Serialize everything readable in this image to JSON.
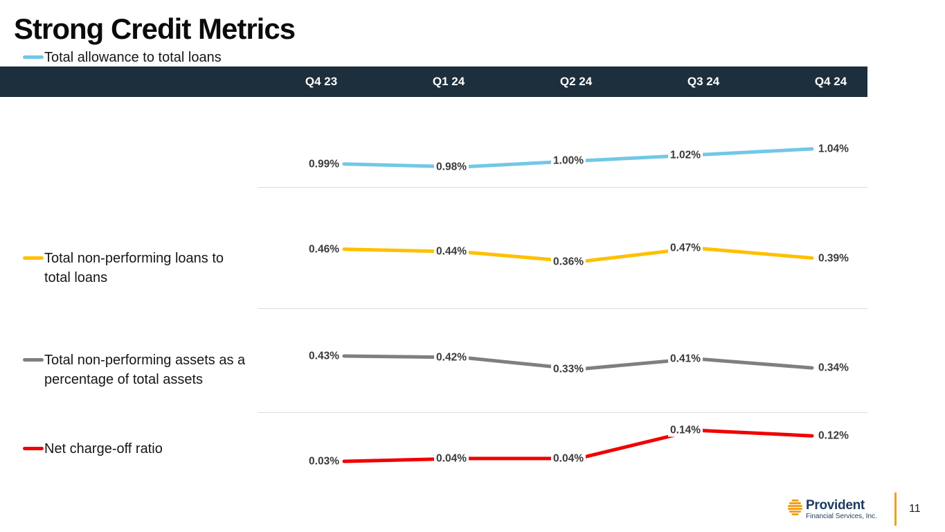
{
  "slide": {
    "title": "Strong Credit Metrics",
    "page_number": "11",
    "background_color": "#ffffff"
  },
  "header": {
    "columns": [
      "Q4 23",
      "Q1 24",
      "Q2 24",
      "Q3 24",
      "Q4 24"
    ],
    "bg_color": "#1d2e3c",
    "text_color": "#ffffff"
  },
  "chart_data": {
    "type": "line",
    "categories": [
      "Q4 23",
      "Q1 24",
      "Q2 24",
      "Q3 24",
      "Q4 24"
    ],
    "value_format": "percent",
    "grid": "row-dividers-only",
    "legend_position": "left",
    "series": [
      {
        "name": "Total allowance to total loans",
        "color": "#72c7e7",
        "values": [
          0.99,
          0.98,
          1.0,
          1.02,
          1.04
        ],
        "labels": [
          "0.99%",
          "0.98%",
          "1.00%",
          "1.02%",
          "1.04%"
        ],
        "ylim": [
          0.98,
          1.04
        ]
      },
      {
        "name": "Total non-performing loans to total loans",
        "color": "#ffc000",
        "values": [
          0.46,
          0.44,
          0.36,
          0.47,
          0.39
        ],
        "labels": [
          "0.46%",
          "0.44%",
          "0.36%",
          "0.47%",
          "0.39%"
        ],
        "ylim": [
          0.36,
          0.47
        ]
      },
      {
        "name": "Total non-performing assets as a percentage of total assets",
        "color": "#7f7f7f",
        "values": [
          0.43,
          0.42,
          0.33,
          0.41,
          0.34
        ],
        "labels": [
          "0.43%",
          "0.42%",
          "0.33%",
          "0.41%",
          "0.34%"
        ],
        "ylim": [
          0.33,
          0.43
        ]
      },
      {
        "name": "Net charge-off ratio",
        "color": "#f00000",
        "values": [
          0.03,
          0.04,
          0.04,
          0.14,
          0.12
        ],
        "labels": [
          "0.03%",
          "0.04%",
          "0.04%",
          "0.14%",
          "0.12%"
        ],
        "ylim": [
          0.03,
          0.14
        ]
      }
    ]
  },
  "footer": {
    "logo_name": "Provident",
    "logo_subtext": "Financial Services, Inc.",
    "logo_text_color": "#1c3a5e",
    "logo_icon_color": "#f0a11e",
    "rule_color": "#f0a11e"
  }
}
